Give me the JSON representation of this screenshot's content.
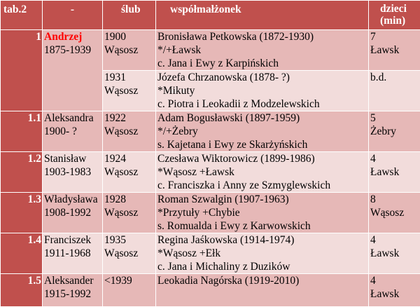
{
  "headers": {
    "tab": "tab.2",
    "dash": "-",
    "slub": "ślub",
    "wspolmalzonek": "współmałżonek",
    "dzieci_line1": "dzieci",
    "dzieci_line2": "(min)"
  },
  "rows": [
    {
      "num": "1",
      "name": "Andrzej",
      "years": "1875-1939",
      "marriages": [
        {
          "year": "1900",
          "place": "Wąsosz",
          "spouse": "Bronisława Petkowska (1872-1930)",
          "birth": "*/+Ławsk",
          "parents": "c. Jana i Ewy z Karpińskich",
          "children_count": "7",
          "children_place": "Ławsk"
        },
        {
          "year": "1931",
          "place": "Wąsosz",
          "spouse": "Józefa Chrzanowska (1878- ?)",
          "birth": "*Mikuty",
          "parents": "c. Piotra i Leokadii z Modzelewskich",
          "children_count": "b.d.",
          "children_place": ""
        }
      ]
    },
    {
      "num": "1.1",
      "name": "Aleksandra",
      "years": "1900- ?",
      "year": "1922",
      "place": "Wąsosz",
      "spouse": "Adam Bogusławski (1897-1959)",
      "birth": "*/+Żebry",
      "parents": "s. Kajetana i Ewy ze Skarżyńskich",
      "children_count": "5",
      "children_place": "Żebry"
    },
    {
      "num": "1.2",
      "name": "Stanisław",
      "years": "1903-1983",
      "year": "1924",
      "place": "Wąsosz",
      "spouse": "Czesława Wiktorowicz (1899-1986)",
      "birth": "*Wąsosz +Ławsk",
      "parents": "c. Franciszka i Anny ze Szmyglewskich",
      "children_count": "4",
      "children_place": "Ławsk"
    },
    {
      "num": "1.3",
      "name": "Władysława",
      "years": "1908-1992",
      "year": "1928",
      "place": "Wąsosz",
      "spouse": "Roman Szwalgin (1907-1963)",
      "birth": "*Przytuły +Chybie",
      "parents": "s. Romualda i Ewy z Karwowskich",
      "children_count": "8",
      "children_place": "Wąsosz"
    },
    {
      "num": "1.4",
      "name": "Franciszek",
      "years": "1911-1968",
      "year": "1935",
      "place": "Wąsosz",
      "spouse": "Regina Jaśkowska (1914-1974)",
      "birth": "*Wąsosz +Ełk",
      "parents": "c. Jana i Michaliny z Duzików",
      "children_count": "4",
      "children_place": "Ławsk"
    },
    {
      "num": "1.5",
      "name": "Aleksander",
      "years": "1915-1992",
      "year": "<1939",
      "place": "",
      "spouse": "Leokadia Nagórska (1919-2010)",
      "birth": "",
      "parents": "",
      "children_count": "4",
      "children_place": "Ławsk"
    }
  ]
}
